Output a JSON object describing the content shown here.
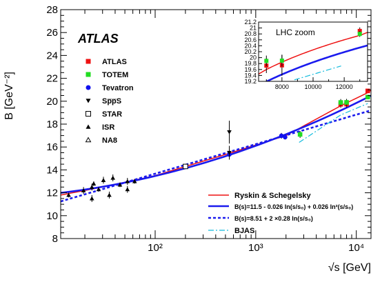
{
  "chart_data": {
    "type": "scatter",
    "title": "",
    "xlabel": "√s [GeV]",
    "ylabel": "B [GeV⁻²]",
    "xscale": "log",
    "xlim": [
      11.5,
      14000
    ],
    "ylim": [
      8,
      28
    ],
    "grid": false,
    "x_tick_labels": [
      "10²",
      "10³",
      "10⁴"
    ],
    "y_tick_labels": [
      "8",
      "10",
      "12",
      "14",
      "16",
      "18",
      "20",
      "22",
      "24",
      "26",
      "28"
    ],
    "experiment_label": "ATLAS",
    "legend_points": {
      "placement": "left",
      "entries": [
        "ATLAS",
        "TOTEM",
        "Tevatron",
        "Sp̅p̅S",
        "STAR",
        "ISR",
        "NA8"
      ]
    },
    "legend_lines": {
      "placement": "bottom-right",
      "entries": [
        "Ryskin & Schegelsky",
        "B(s)=11.5 - 0.026 ln(s/s₀) + 0.026 ln²(s/s₀)",
        "B(s)=8.51 + 2 ×0.28 ln(s/s₀)",
        "BJAS"
      ]
    },
    "series": [
      {
        "name": "ATLAS",
        "marker": "square-filled",
        "color": "#ee1111",
        "points": [
          {
            "x": 7000,
            "y": 19.73,
            "err": 0.3
          },
          {
            "x": 8000,
            "y": 19.74,
            "err": 0.3
          },
          {
            "x": 13000,
            "y": 20.9,
            "err": 0.1
          }
        ]
      },
      {
        "name": "TOTEM",
        "marker": "square-filled",
        "color": "#22dd22",
        "points": [
          {
            "x": 2760,
            "y": 17.1,
            "err": 0.3
          },
          {
            "x": 7000,
            "y": 19.89,
            "err": 0.3
          },
          {
            "x": 8000,
            "y": 19.9,
            "err": 0.3
          },
          {
            "x": 13000,
            "y": 20.36,
            "err": 0.15
          }
        ]
      },
      {
        "name": "Tevatron",
        "marker": "circle-filled",
        "color": "#1111ee",
        "points": [
          {
            "x": 1800,
            "y": 16.98,
            "err": 0.25
          },
          {
            "x": 1960,
            "y": 16.86,
            "err": 0.2
          },
          {
            "x": 546,
            "y": 15.35,
            "err": 0.2
          }
        ]
      },
      {
        "name": "Sp̅p̅S",
        "marker": "triangle-down-filled",
        "color": "#000000",
        "points": [
          {
            "x": 546,
            "y": 17.3,
            "err": 1.0
          },
          {
            "x": 546,
            "y": 15.5,
            "err": 0.6
          }
        ]
      },
      {
        "name": "STAR",
        "marker": "square-open",
        "color": "#000000",
        "points": [
          {
            "x": 200,
            "y": 14.3,
            "err": 0.15
          }
        ]
      },
      {
        "name": "ISR",
        "marker": "triangle-up-filled",
        "color": "#000000",
        "points": [
          {
            "x": 13.8,
            "y": 11.8,
            "err": 0.2
          },
          {
            "x": 19.4,
            "y": 12.2,
            "err": 0.3
          },
          {
            "x": 23.5,
            "y": 12.5,
            "err": 0.3
          },
          {
            "x": 23.5,
            "y": 11.5,
            "err": 0.3
          },
          {
            "x": 24.5,
            "y": 12.8,
            "err": 0.2
          },
          {
            "x": 27.4,
            "y": 12.3,
            "err": 0.2
          },
          {
            "x": 30.6,
            "y": 13.1,
            "err": 0.3
          },
          {
            "x": 35,
            "y": 11.8,
            "err": 0.3
          },
          {
            "x": 38,
            "y": 13.3,
            "err": 0.3
          },
          {
            "x": 44.7,
            "y": 12.7,
            "err": 0.2
          },
          {
            "x": 53,
            "y": 13.0,
            "err": 0.3
          },
          {
            "x": 53,
            "y": 12.3,
            "err": 0.3
          },
          {
            "x": 62.5,
            "y": 13.0,
            "err": 0.2
          }
        ]
      },
      {
        "name": "NA8",
        "marker": "triangle-up-open",
        "color": "#000000",
        "points": []
      }
    ],
    "inset": {
      "label": "LHC zoom",
      "placement": "top-right",
      "xlim": [
        6500,
        13500
      ],
      "ylim": [
        19.2,
        21.2
      ],
      "x_tick_labels": [
        "8000",
        "10000",
        "12000"
      ],
      "y_tick_labels": [
        "19.2",
        "19.4",
        "19.6",
        "19.8",
        "20",
        "20.2",
        "20.4",
        "20.6",
        "20.8",
        "21",
        "21.2"
      ]
    }
  }
}
